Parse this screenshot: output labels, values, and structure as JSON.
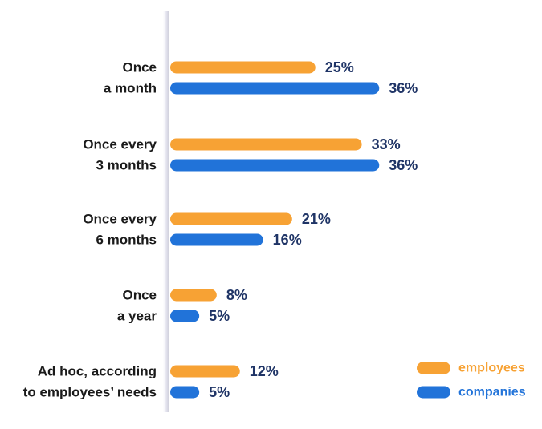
{
  "chart_data": {
    "type": "bar",
    "orientation": "horizontal",
    "categories": [
      [
        "Once",
        "a month"
      ],
      [
        "Once every",
        "3 months"
      ],
      [
        "Once every",
        "6 months"
      ],
      [
        "Once",
        "a year"
      ],
      [
        "Ad hoc, according",
        "to employees’ needs"
      ]
    ],
    "series": [
      {
        "name": "employees",
        "color": "#f7a234",
        "values": [
          25,
          33,
          21,
          8,
          12
        ],
        "labels": [
          "25%",
          "33%",
          "21%",
          "8%",
          "12%"
        ]
      },
      {
        "name": "companies",
        "color": "#2173d9",
        "values": [
          36,
          36,
          16,
          5,
          5
        ],
        "labels": [
          "36%",
          "36%",
          "16%",
          "5%",
          "5%"
        ]
      }
    ],
    "value_unit": "%",
    "title": "",
    "xlabel": "",
    "ylabel": "",
    "grid": false,
    "legend_position": "bottom-right",
    "colors": {
      "value_label": "#1f3466",
      "category_label": "#1a1a1a",
      "legend_label": "#f7a234",
      "legend_label_alt": "#2173d9",
      "axis_line": "#dcdce8"
    }
  }
}
